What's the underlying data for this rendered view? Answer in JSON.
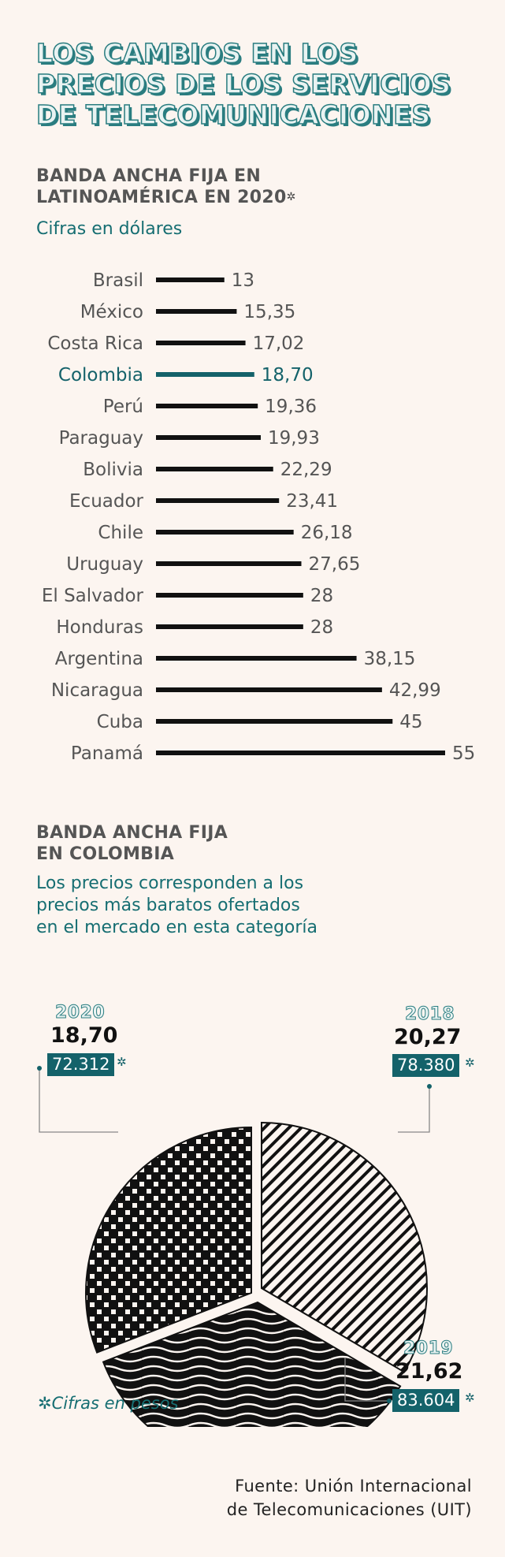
{
  "title_lines": [
    "LOS CAMBIOS EN LOS",
    "PRECIOS DE LOS SERVICIOS",
    "DE TELECOMUNICACIONES"
  ],
  "section1": {
    "title_line1": "BANDA ANCHA FIJA EN",
    "title_line2": "LATINOAMÉRICA EN 2020",
    "asterisk": "✲",
    "subtitle": "Cifras en dólares"
  },
  "section2": {
    "title_line1": "BANDA ANCHA FIJA",
    "title_line2": "EN COLOMBIA",
    "subtitle_lines": [
      "Los precios corresponden a los",
      "precios más baratos ofertados",
      "en el mercado en esta categoría"
    ]
  },
  "chart_data": [
    {
      "type": "bar",
      "orientation": "horizontal",
      "categories": [
        "Brasil",
        "México",
        "Costa Rica",
        "Colombia",
        "Perú",
        "Paraguay",
        "Bolivia",
        "Ecuador",
        "Chile",
        "Uruguay",
        "El Salvador",
        "Honduras",
        "Argentina",
        "Nicaragua",
        "Cuba",
        "Panamá"
      ],
      "values": [
        13,
        15.35,
        17.02,
        18.7,
        19.36,
        19.93,
        22.29,
        23.41,
        26.18,
        27.65,
        28,
        28,
        38.15,
        42.99,
        45,
        55
      ],
      "value_labels": [
        "13",
        "15,35",
        "17,02",
        "18,70",
        "19,36",
        "19,93",
        "22,29",
        "23,41",
        "26,18",
        "27,65",
        "28",
        "28",
        "38,15",
        "42,99",
        "45",
        "55"
      ],
      "highlight": "Colombia",
      "xlim": [
        0,
        55
      ],
      "colors": {
        "default": "#111111",
        "highlight": "#14626a"
      }
    },
    {
      "type": "pie",
      "labels": [
        "2018",
        "2019",
        "2020"
      ],
      "values_usd": [
        20.27,
        21.62,
        18.7
      ],
      "value_labels_usd": [
        "20,27",
        "21,62",
        "18,70"
      ],
      "values_cop": [
        "78.380",
        "83.604",
        "72.312"
      ],
      "cop_marker": "✲",
      "patterns": [
        "diagonal-stripes",
        "waves",
        "dots"
      ],
      "colors": {
        "fill": "#111111",
        "accent": "#14626a"
      }
    }
  ],
  "footnote": "✲Cifras en pesos",
  "source_line1": "Fuente: Unión Internacional",
  "source_line2": "de Telecomunicaciones (UIT)"
}
